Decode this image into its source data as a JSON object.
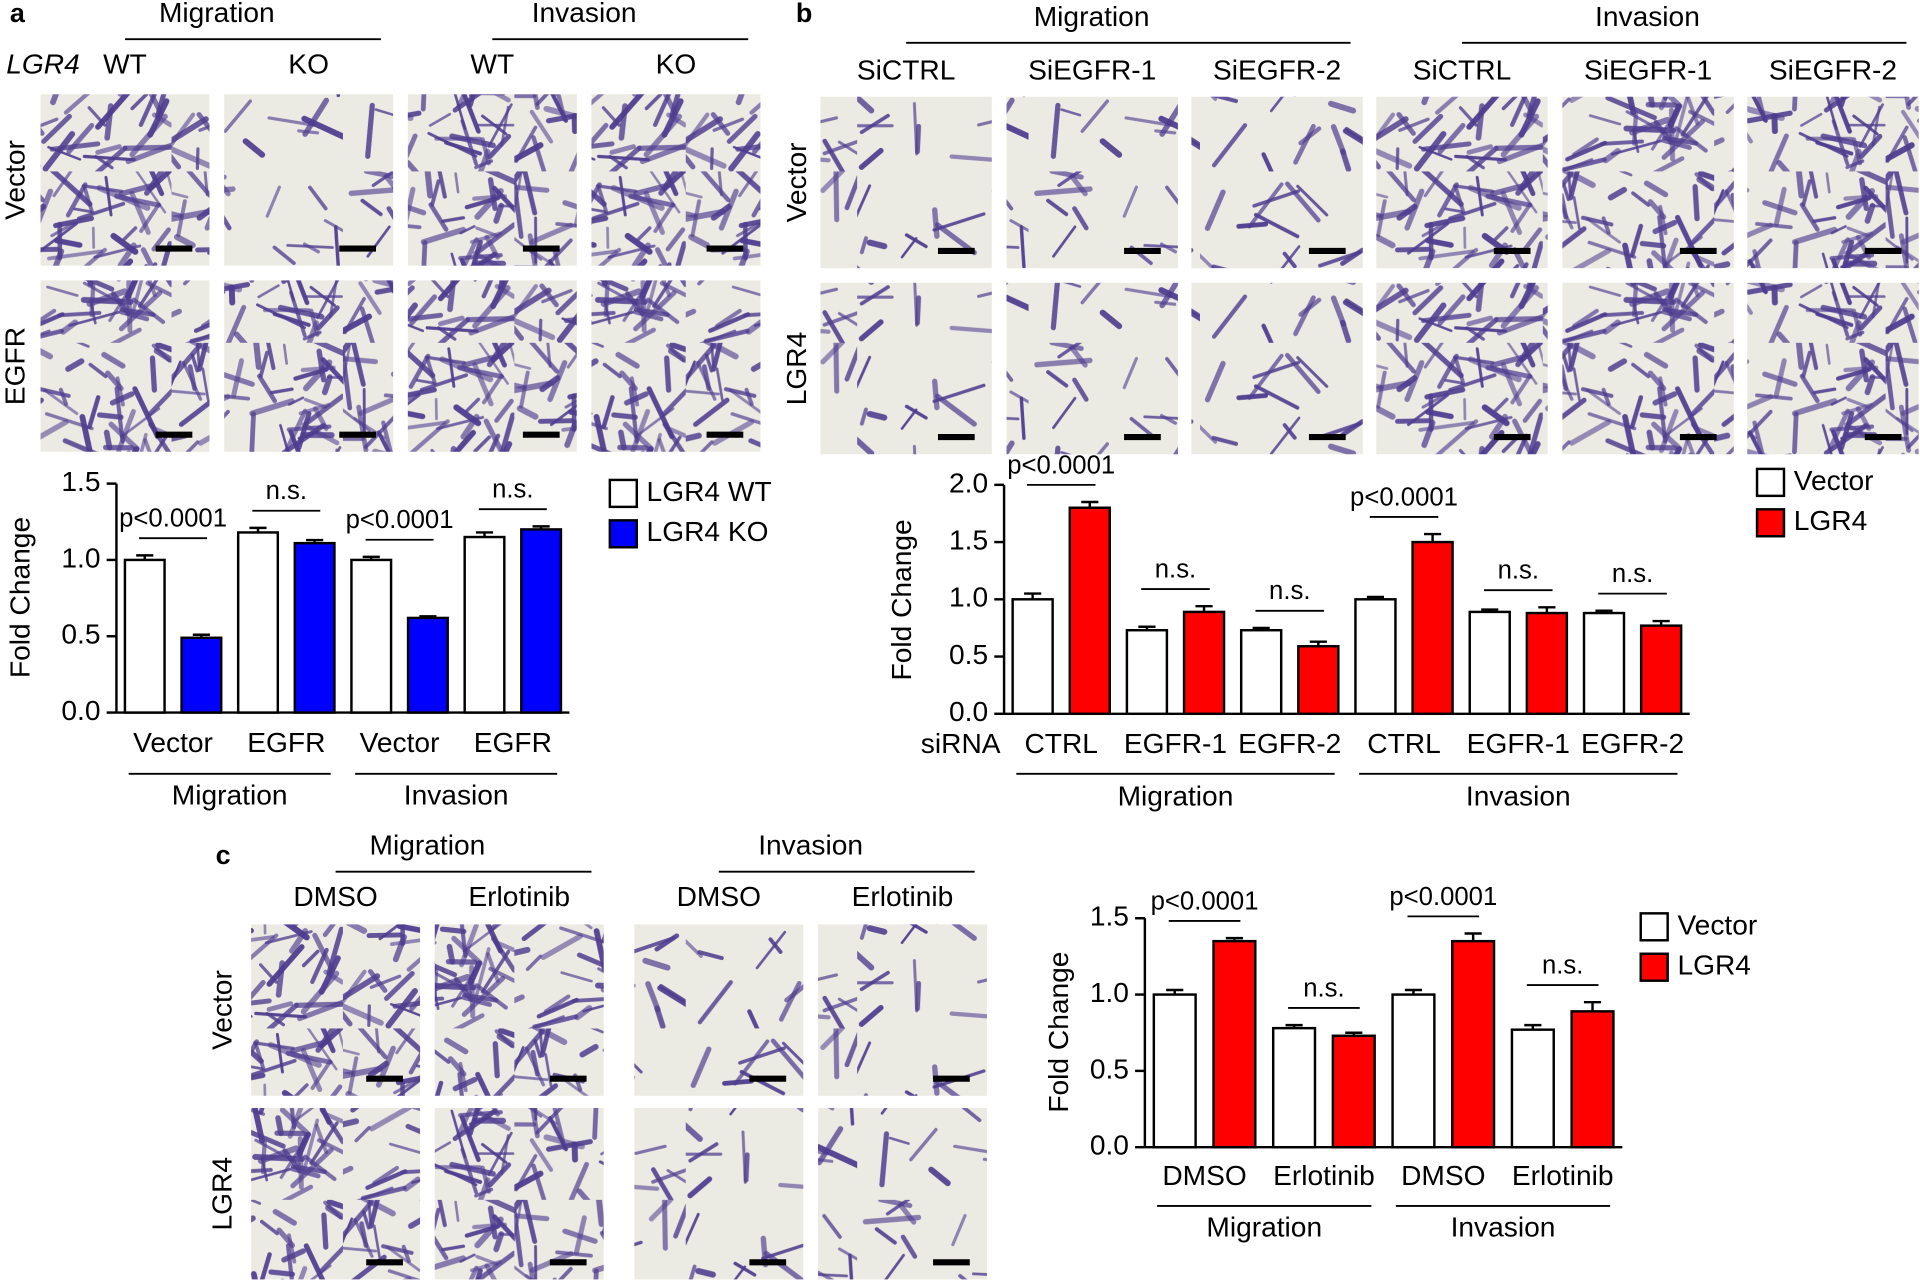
{
  "panels": [
    {
      "label": "a",
      "row_header": "LGR4",
      "groups": [
        "Migration",
        "Invasion"
      ],
      "columns": [
        "WT",
        "KO",
        "WT",
        "KO"
      ],
      "rows": [
        "Vector",
        "EGFR"
      ]
    },
    {
      "label": "b",
      "groups": [
        "Migration",
        "Invasion"
      ],
      "columns": [
        "SiCTRL",
        "SiEGFR-1",
        "SiEGFR-2",
        "SiCTRL",
        "SiEGFR-1",
        "SiEGFR-2"
      ],
      "rows": [
        "Vector",
        "LGR4"
      ]
    },
    {
      "label": "c",
      "groups": [
        "Migration",
        "Invasion"
      ],
      "columns": [
        "DMSO",
        "Erlotinib",
        "DMSO",
        "Erlotinib"
      ],
      "rows": [
        "Vector",
        "LGR4"
      ]
    }
  ],
  "chart_data": [
    {
      "type": "bar",
      "y_label": "Fold Change",
      "categories": [
        "Vector",
        "EGFR",
        "Vector",
        "EGFR"
      ],
      "groups": [
        "Migration",
        "Invasion"
      ],
      "series": [
        {
          "name": "LGR4 WT",
          "color": "#ffffff",
          "values": [
            1.0,
            1.18,
            1.0,
            1.15
          ],
          "errors": [
            0.03,
            0.03,
            0.02,
            0.03
          ]
        },
        {
          "name": "LGR4 KO",
          "color": "#0000ff",
          "values": [
            0.49,
            1.11,
            0.62,
            1.2
          ],
          "errors": [
            0.02,
            0.02,
            0.01,
            0.02
          ]
        }
      ],
      "annotations": [
        "p<0.0001",
        "n.s.",
        "p<0.0001",
        "n.s."
      ],
      "ylim": [
        0,
        1.5
      ],
      "yticks": [
        {
          "value": 0,
          "label": "0.0"
        },
        0.5,
        {
          "value": 1,
          "label": "1.0"
        },
        1.5
      ]
    },
    {
      "type": "bar",
      "y_label": "Fold Change",
      "x_label": "siRNA",
      "categories": [
        "CTRL",
        "EGFR-1",
        "EGFR-2",
        "CTRL",
        "EGFR-1",
        "EGFR-2"
      ],
      "groups": [
        "Migration",
        "Invasion"
      ],
      "series": [
        {
          "name": "Vector",
          "color": "#ffffff",
          "values": [
            1.0,
            0.73,
            0.73,
            1.0,
            0.89,
            0.88
          ],
          "errors": [
            0.05,
            0.03,
            0.02,
            0.02,
            0.02,
            0.02
          ]
        },
        {
          "name": "LGR4",
          "color": "#ff0000",
          "values": [
            1.8,
            0.89,
            0.59,
            1.5,
            0.88,
            0.77
          ],
          "errors": [
            0.05,
            0.05,
            0.04,
            0.07,
            0.05,
            0.04
          ]
        }
      ],
      "annotations": [
        "p<0.0001",
        "n.s.",
        "n.s.",
        "p<0.0001",
        "n.s.",
        "n.s."
      ],
      "ylim": [
        0,
        2
      ],
      "yticks": [
        {
          "value": 0,
          "label": "0.0"
        },
        0.5,
        {
          "value": 1,
          "label": "1.0"
        },
        1.5,
        {
          "value": 2,
          "label": "2.0"
        }
      ]
    },
    {
      "type": "bar",
      "y_label": "Fold Change",
      "categories": [
        "DMSO",
        "Erlotinib",
        "DMSO",
        "Erlotinib"
      ],
      "groups": [
        "Migration",
        "Invasion"
      ],
      "series": [
        {
          "name": "Vector",
          "color": "#ffffff",
          "values": [
            1.0,
            0.78,
            1.0,
            0.77
          ],
          "errors": [
            0.03,
            0.02,
            0.03,
            0.03
          ]
        },
        {
          "name": "LGR4",
          "color": "#ff0000",
          "values": [
            1.35,
            0.73,
            1.35,
            0.89
          ],
          "errors": [
            0.02,
            0.02,
            0.05,
            0.06
          ]
        }
      ],
      "annotations": [
        "p<0.0001",
        "n.s.",
        "p<0.0001",
        "n.s."
      ],
      "ylim": [
        0,
        1.5
      ],
      "yticks": [
        {
          "value": 0,
          "label": "0.0"
        },
        0.5,
        {
          "value": 1,
          "label": "1.0"
        },
        1.5
      ]
    }
  ]
}
